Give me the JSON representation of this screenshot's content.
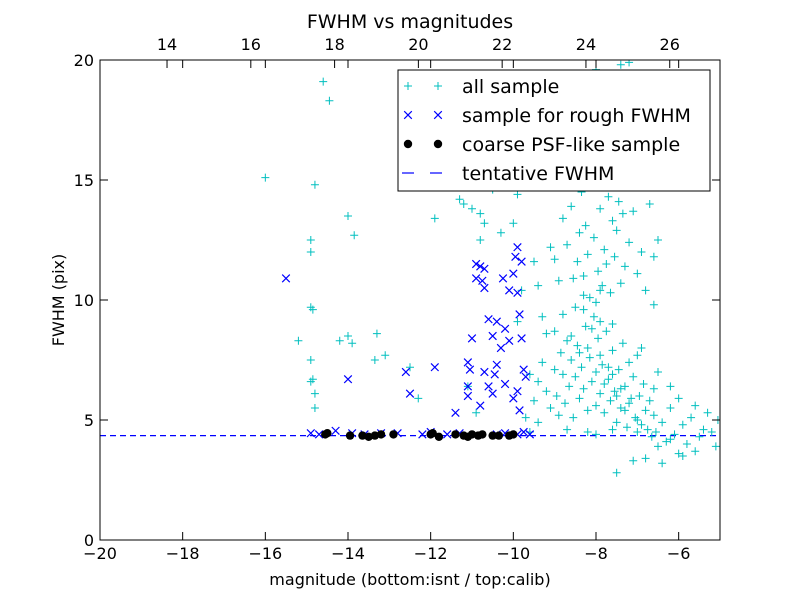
{
  "chart_data": {
    "type": "scatter",
    "title": "FWHM vs magnitudes",
    "xlabel": "magnitude (bottom:isnt / top:calib)",
    "ylabel": "FWHM (pix)",
    "xlim": [
      -20,
      -5
    ],
    "ylim": [
      0,
      20
    ],
    "top_xlim": [
      12.4,
      27.2
    ],
    "x_ticks": [
      -20,
      -18,
      -16,
      -14,
      -12,
      -10,
      -8,
      -6
    ],
    "x_tick_labels": [
      "−20",
      "−18",
      "−16",
      "−14",
      "−12",
      "−10",
      "−8",
      "−6"
    ],
    "top_x_ticks": [
      14,
      16,
      18,
      20,
      22,
      24,
      26
    ],
    "top_x_tick_labels": [
      "14",
      "16",
      "18",
      "20",
      "22",
      "24",
      "26"
    ],
    "y_ticks": [
      0,
      5,
      10,
      15,
      20
    ],
    "y_tick_labels": [
      "0",
      "5",
      "10",
      "15",
      "20"
    ],
    "grid": false,
    "legend_position": "top-right",
    "tentative_fwhm": 4.35,
    "series": [
      {
        "name": "all sample",
        "marker": "plus",
        "color": "#00bfbf",
        "points": [
          [
            -16.0,
            15.1
          ],
          [
            -14.6,
            19.1
          ],
          [
            -14.45,
            18.3
          ],
          [
            -14.8,
            14.8
          ],
          [
            -14.0,
            13.5
          ],
          [
            -13.85,
            12.7
          ],
          [
            -14.9,
            12.5
          ],
          [
            -14.9,
            12.0
          ],
          [
            -14.9,
            9.7
          ],
          [
            -14.85,
            9.6
          ],
          [
            -15.2,
            8.3
          ],
          [
            -14.2,
            8.3
          ],
          [
            -14.0,
            8.5
          ],
          [
            -13.9,
            8.2
          ],
          [
            -13.3,
            8.6
          ],
          [
            -13.1,
            7.7
          ],
          [
            -13.35,
            7.5
          ],
          [
            -14.9,
            7.5
          ],
          [
            -14.85,
            6.7
          ],
          [
            -14.9,
            6.6
          ],
          [
            -14.8,
            6.1
          ],
          [
            -14.8,
            5.5
          ],
          [
            -12.5,
            7.2
          ],
          [
            -12.3,
            5.9
          ],
          [
            -11.9,
            13.4
          ],
          [
            -11.2,
            14.0
          ],
          [
            -11.0,
            13.8
          ],
          [
            -10.7,
            13.2
          ],
          [
            -10.8,
            12.5
          ],
          [
            -10.5,
            14.6
          ],
          [
            -10.3,
            12.8
          ],
          [
            -10.0,
            13.2
          ],
          [
            -9.9,
            14.4
          ],
          [
            -10.2,
            15.6
          ],
          [
            -10.8,
            13.6
          ],
          [
            -11.3,
            14.2
          ],
          [
            -11.1,
            6.4
          ],
          [
            -10.9,
            5.3
          ],
          [
            -9.7,
            5.1
          ],
          [
            -9.9,
            9.1
          ],
          [
            -9.8,
            10.4
          ],
          [
            -9.5,
            11.6
          ],
          [
            -9.4,
            10.6
          ],
          [
            -9.3,
            9.3
          ],
          [
            -9.2,
            8.6
          ],
          [
            -9.1,
            12.2
          ],
          [
            -9.0,
            11.7
          ],
          [
            -8.9,
            10.8
          ],
          [
            -8.8,
            13.4
          ],
          [
            -8.7,
            12.3
          ],
          [
            -8.6,
            13.9
          ],
          [
            -8.55,
            10.9
          ],
          [
            -8.5,
            9.7
          ],
          [
            -8.45,
            11.6
          ],
          [
            -8.4,
            12.8
          ],
          [
            -8.35,
            14.5
          ],
          [
            -8.3,
            10.2
          ],
          [
            -8.25,
            13.1
          ],
          [
            -8.2,
            11.9
          ],
          [
            -8.15,
            10.1
          ],
          [
            -8.1,
            14.7
          ],
          [
            -8.05,
            12.6
          ],
          [
            -8.0,
            9.9
          ],
          [
            -7.95,
            11.2
          ],
          [
            -7.9,
            13.8
          ],
          [
            -7.85,
            10.6
          ],
          [
            -7.8,
            12.1
          ],
          [
            -7.75,
            11.5
          ],
          [
            -7.7,
            14.3
          ],
          [
            -7.65,
            10.3
          ],
          [
            -7.6,
            13.3
          ],
          [
            -7.55,
            11.8
          ],
          [
            -7.5,
            12.9
          ],
          [
            -7.45,
            14.1
          ],
          [
            -7.4,
            10.7
          ],
          [
            -7.35,
            13.6
          ],
          [
            -7.3,
            11.4
          ],
          [
            -7.2,
            12.4
          ],
          [
            -7.1,
            13.7
          ],
          [
            -7.0,
            11.1
          ],
          [
            -6.9,
            12.0
          ],
          [
            -6.8,
            10.4
          ],
          [
            -6.6,
            11.8
          ],
          [
            -6.5,
            12.5
          ],
          [
            -6.7,
            14.0
          ],
          [
            -6.6,
            9.8
          ],
          [
            -7.9,
            15.6
          ],
          [
            -7.5,
            16.4
          ],
          [
            -8.2,
            17.3
          ],
          [
            -8.6,
            18.5
          ],
          [
            -7.7,
            19.3
          ],
          [
            -7.4,
            19.8
          ],
          [
            -7.2,
            19.9
          ],
          [
            -8.0,
            19.6
          ],
          [
            -7.8,
            17.9
          ],
          [
            -7.3,
            16.9
          ],
          [
            -8.4,
            16.2
          ],
          [
            -7.6,
            15.2
          ],
          [
            -9.5,
            5.8
          ],
          [
            -9.4,
            6.6
          ],
          [
            -9.3,
            7.4
          ],
          [
            -9.2,
            6.2
          ],
          [
            -9.1,
            5.5
          ],
          [
            -9.0,
            7.1
          ],
          [
            -8.95,
            6.0
          ],
          [
            -8.9,
            5.2
          ],
          [
            -8.85,
            7.8
          ],
          [
            -8.8,
            6.9
          ],
          [
            -8.75,
            5.7
          ],
          [
            -8.7,
            8.3
          ],
          [
            -8.65,
            6.4
          ],
          [
            -8.6,
            7.5
          ],
          [
            -8.55,
            5.1
          ],
          [
            -8.5,
            6.8
          ],
          [
            -8.45,
            8.1
          ],
          [
            -8.4,
            5.9
          ],
          [
            -8.35,
            7.2
          ],
          [
            -8.3,
            6.3
          ],
          [
            -8.25,
            8.9
          ],
          [
            -8.2,
            5.4
          ],
          [
            -8.15,
            7.6
          ],
          [
            -8.1,
            6.6
          ],
          [
            -8.05,
            9.3
          ],
          [
            -8.0,
            5.6
          ],
          [
            -7.95,
            8.4
          ],
          [
            -7.9,
            6.1
          ],
          [
            -7.85,
            7.3
          ],
          [
            -7.8,
            5.3
          ],
          [
            -7.75,
            8.7
          ],
          [
            -7.7,
            6.7
          ],
          [
            -7.65,
            5.8
          ],
          [
            -7.6,
            7.9
          ],
          [
            -7.55,
            6.2
          ],
          [
            -7.5,
            4.9
          ],
          [
            -7.45,
            7.1
          ],
          [
            -7.4,
            5.5
          ],
          [
            -7.35,
            8.2
          ],
          [
            -7.3,
            6.4
          ],
          [
            -7.25,
            4.7
          ],
          [
            -7.2,
            7.4
          ],
          [
            -7.15,
            5.9
          ],
          [
            -7.1,
            6.8
          ],
          [
            -7.05,
            5.1
          ],
          [
            -7.0,
            7.7
          ],
          [
            -6.95,
            6.0
          ],
          [
            -6.9,
            4.8
          ],
          [
            -6.85,
            6.5
          ],
          [
            -6.8,
            5.4
          ],
          [
            -6.75,
            4.6
          ],
          [
            -6.7,
            5.8
          ],
          [
            -6.65,
            4.3
          ],
          [
            -6.6,
            5.2
          ],
          [
            -6.55,
            4.5
          ],
          [
            -6.5,
            3.9
          ],
          [
            -6.4,
            4.9
          ],
          [
            -6.3,
            4.1
          ],
          [
            -6.2,
            5.5
          ],
          [
            -6.1,
            4.4
          ],
          [
            -6.0,
            3.6
          ],
          [
            -5.9,
            4.8
          ],
          [
            -5.8,
            4.0
          ],
          [
            -5.7,
            5.1
          ],
          [
            -5.6,
            3.7
          ],
          [
            -5.4,
            4.6
          ],
          [
            -5.3,
            5.3
          ],
          [
            -5.1,
            3.9
          ],
          [
            -5.05,
            5.0
          ],
          [
            -5.9,
            3.5
          ],
          [
            -6.8,
            3.4
          ],
          [
            -7.1,
            3.3
          ],
          [
            -7.5,
            2.8
          ],
          [
            -6.4,
            3.2
          ],
          [
            -8.3,
            9.6
          ],
          [
            -8.1,
            8.8
          ],
          [
            -7.9,
            9.1
          ],
          [
            -8.0,
            7.0
          ],
          [
            -7.8,
            6.5
          ],
          [
            -7.6,
            6.9
          ],
          [
            -7.4,
            6.3
          ],
          [
            -7.2,
            5.7
          ],
          [
            -7.0,
            5.0
          ],
          [
            -8.2,
            8.0
          ],
          [
            -7.9,
            7.7
          ],
          [
            -7.7,
            7.2
          ],
          [
            -7.5,
            6.0
          ],
          [
            -7.3,
            5.4
          ],
          [
            -8.6,
            8.5
          ],
          [
            -8.4,
            7.8
          ],
          [
            -8.8,
            9.4
          ],
          [
            -9.0,
            8.7
          ],
          [
            -9.4,
            4.9
          ],
          [
            -9.6,
            6.9
          ],
          [
            -9.6,
            4.5
          ],
          [
            -8.2,
            4.5
          ],
          [
            -7.0,
            4.5
          ],
          [
            -6.2,
            4.2
          ],
          [
            -5.5,
            4.3
          ],
          [
            -8.7,
            4.6
          ],
          [
            -8.0,
            4.4
          ],
          [
            -7.6,
            4.6
          ],
          [
            -7.9,
            10.4
          ],
          [
            -8.3,
            11.0
          ],
          [
            -7.6,
            9.0
          ],
          [
            -6.9,
            8.0
          ],
          [
            -6.5,
            7.0
          ],
          [
            -6.2,
            6.4
          ],
          [
            -6.0,
            5.9
          ],
          [
            -5.6,
            5.6
          ],
          [
            -5.2,
            4.5
          ],
          [
            -6.6,
            6.3
          ]
        ]
      },
      {
        "name": "sample for rough FWHM",
        "marker": "x",
        "color": "#0000ff",
        "points": [
          [
            -15.5,
            10.9
          ],
          [
            -14.0,
            6.7
          ],
          [
            -12.6,
            7.0
          ],
          [
            -12.5,
            6.1
          ],
          [
            -11.9,
            7.2
          ],
          [
            -11.4,
            5.3
          ],
          [
            -11.1,
            7.4
          ],
          [
            -11.1,
            6.4
          ],
          [
            -11.05,
            7.1
          ],
          [
            -11.1,
            6.0
          ],
          [
            -10.9,
            11.5
          ],
          [
            -10.8,
            11.4
          ],
          [
            -10.75,
            10.8
          ],
          [
            -10.7,
            10.5
          ],
          [
            -10.6,
            9.2
          ],
          [
            -10.5,
            8.5
          ],
          [
            -10.4,
            9.1
          ],
          [
            -10.3,
            8.0
          ],
          [
            -10.2,
            8.8
          ],
          [
            -10.1,
            10.4
          ],
          [
            -10.0,
            11.1
          ],
          [
            -9.95,
            11.8
          ],
          [
            -9.9,
            10.3
          ],
          [
            -9.85,
            9.4
          ],
          [
            -9.8,
            8.4
          ],
          [
            -9.75,
            7.1
          ],
          [
            -9.7,
            6.8
          ],
          [
            -9.9,
            6.2
          ],
          [
            -10.0,
            5.9
          ],
          [
            -10.2,
            6.5
          ],
          [
            -10.4,
            7.3
          ],
          [
            -10.6,
            6.4
          ],
          [
            -10.5,
            6.1
          ],
          [
            -10.8,
            5.6
          ],
          [
            -11.0,
            8.4
          ],
          [
            -10.7,
            11.3
          ],
          [
            -10.9,
            10.9
          ],
          [
            -9.9,
            12.2
          ],
          [
            -9.8,
            11.6
          ],
          [
            -10.25,
            10.9
          ],
          [
            -10.45,
            6.9
          ],
          [
            -9.85,
            5.4
          ],
          [
            -10.1,
            8.3
          ],
          [
            -10.7,
            7.0
          ],
          [
            -12.0,
            4.5
          ],
          [
            -12.8,
            4.45
          ],
          [
            -13.9,
            4.45
          ],
          [
            -14.3,
            4.55
          ],
          [
            -14.9,
            4.45
          ],
          [
            -14.7,
            4.4
          ],
          [
            -12.2,
            4.4
          ],
          [
            -11.3,
            4.45
          ],
          [
            -10.2,
            4.45
          ],
          [
            -9.9,
            4.4
          ],
          [
            -9.6,
            4.4
          ],
          [
            -9.75,
            4.5
          ],
          [
            -10.4,
            4.4
          ],
          [
            -11.6,
            4.4
          ],
          [
            -13.2,
            4.45
          ],
          [
            -13.6,
            4.4
          ]
        ]
      },
      {
        "name": "coarse PSF-like sample",
        "marker": "circle",
        "color": "#000000",
        "points": [
          [
            -14.55,
            4.4
          ],
          [
            -14.5,
            4.45
          ],
          [
            -13.95,
            4.35
          ],
          [
            -13.65,
            4.35
          ],
          [
            -13.5,
            4.3
          ],
          [
            -13.35,
            4.35
          ],
          [
            -13.2,
            4.4
          ],
          [
            -12.9,
            4.4
          ],
          [
            -12.0,
            4.4
          ],
          [
            -11.95,
            4.45
          ],
          [
            -11.8,
            4.3
          ],
          [
            -11.4,
            4.4
          ],
          [
            -11.2,
            4.35
          ],
          [
            -11.1,
            4.3
          ],
          [
            -11.0,
            4.4
          ],
          [
            -10.85,
            4.35
          ],
          [
            -10.75,
            4.4
          ],
          [
            -10.5,
            4.35
          ],
          [
            -10.35,
            4.35
          ],
          [
            -10.1,
            4.35
          ],
          [
            -10.0,
            4.4
          ]
        ]
      }
    ],
    "legend_line_name": "tentative FWHM"
  }
}
